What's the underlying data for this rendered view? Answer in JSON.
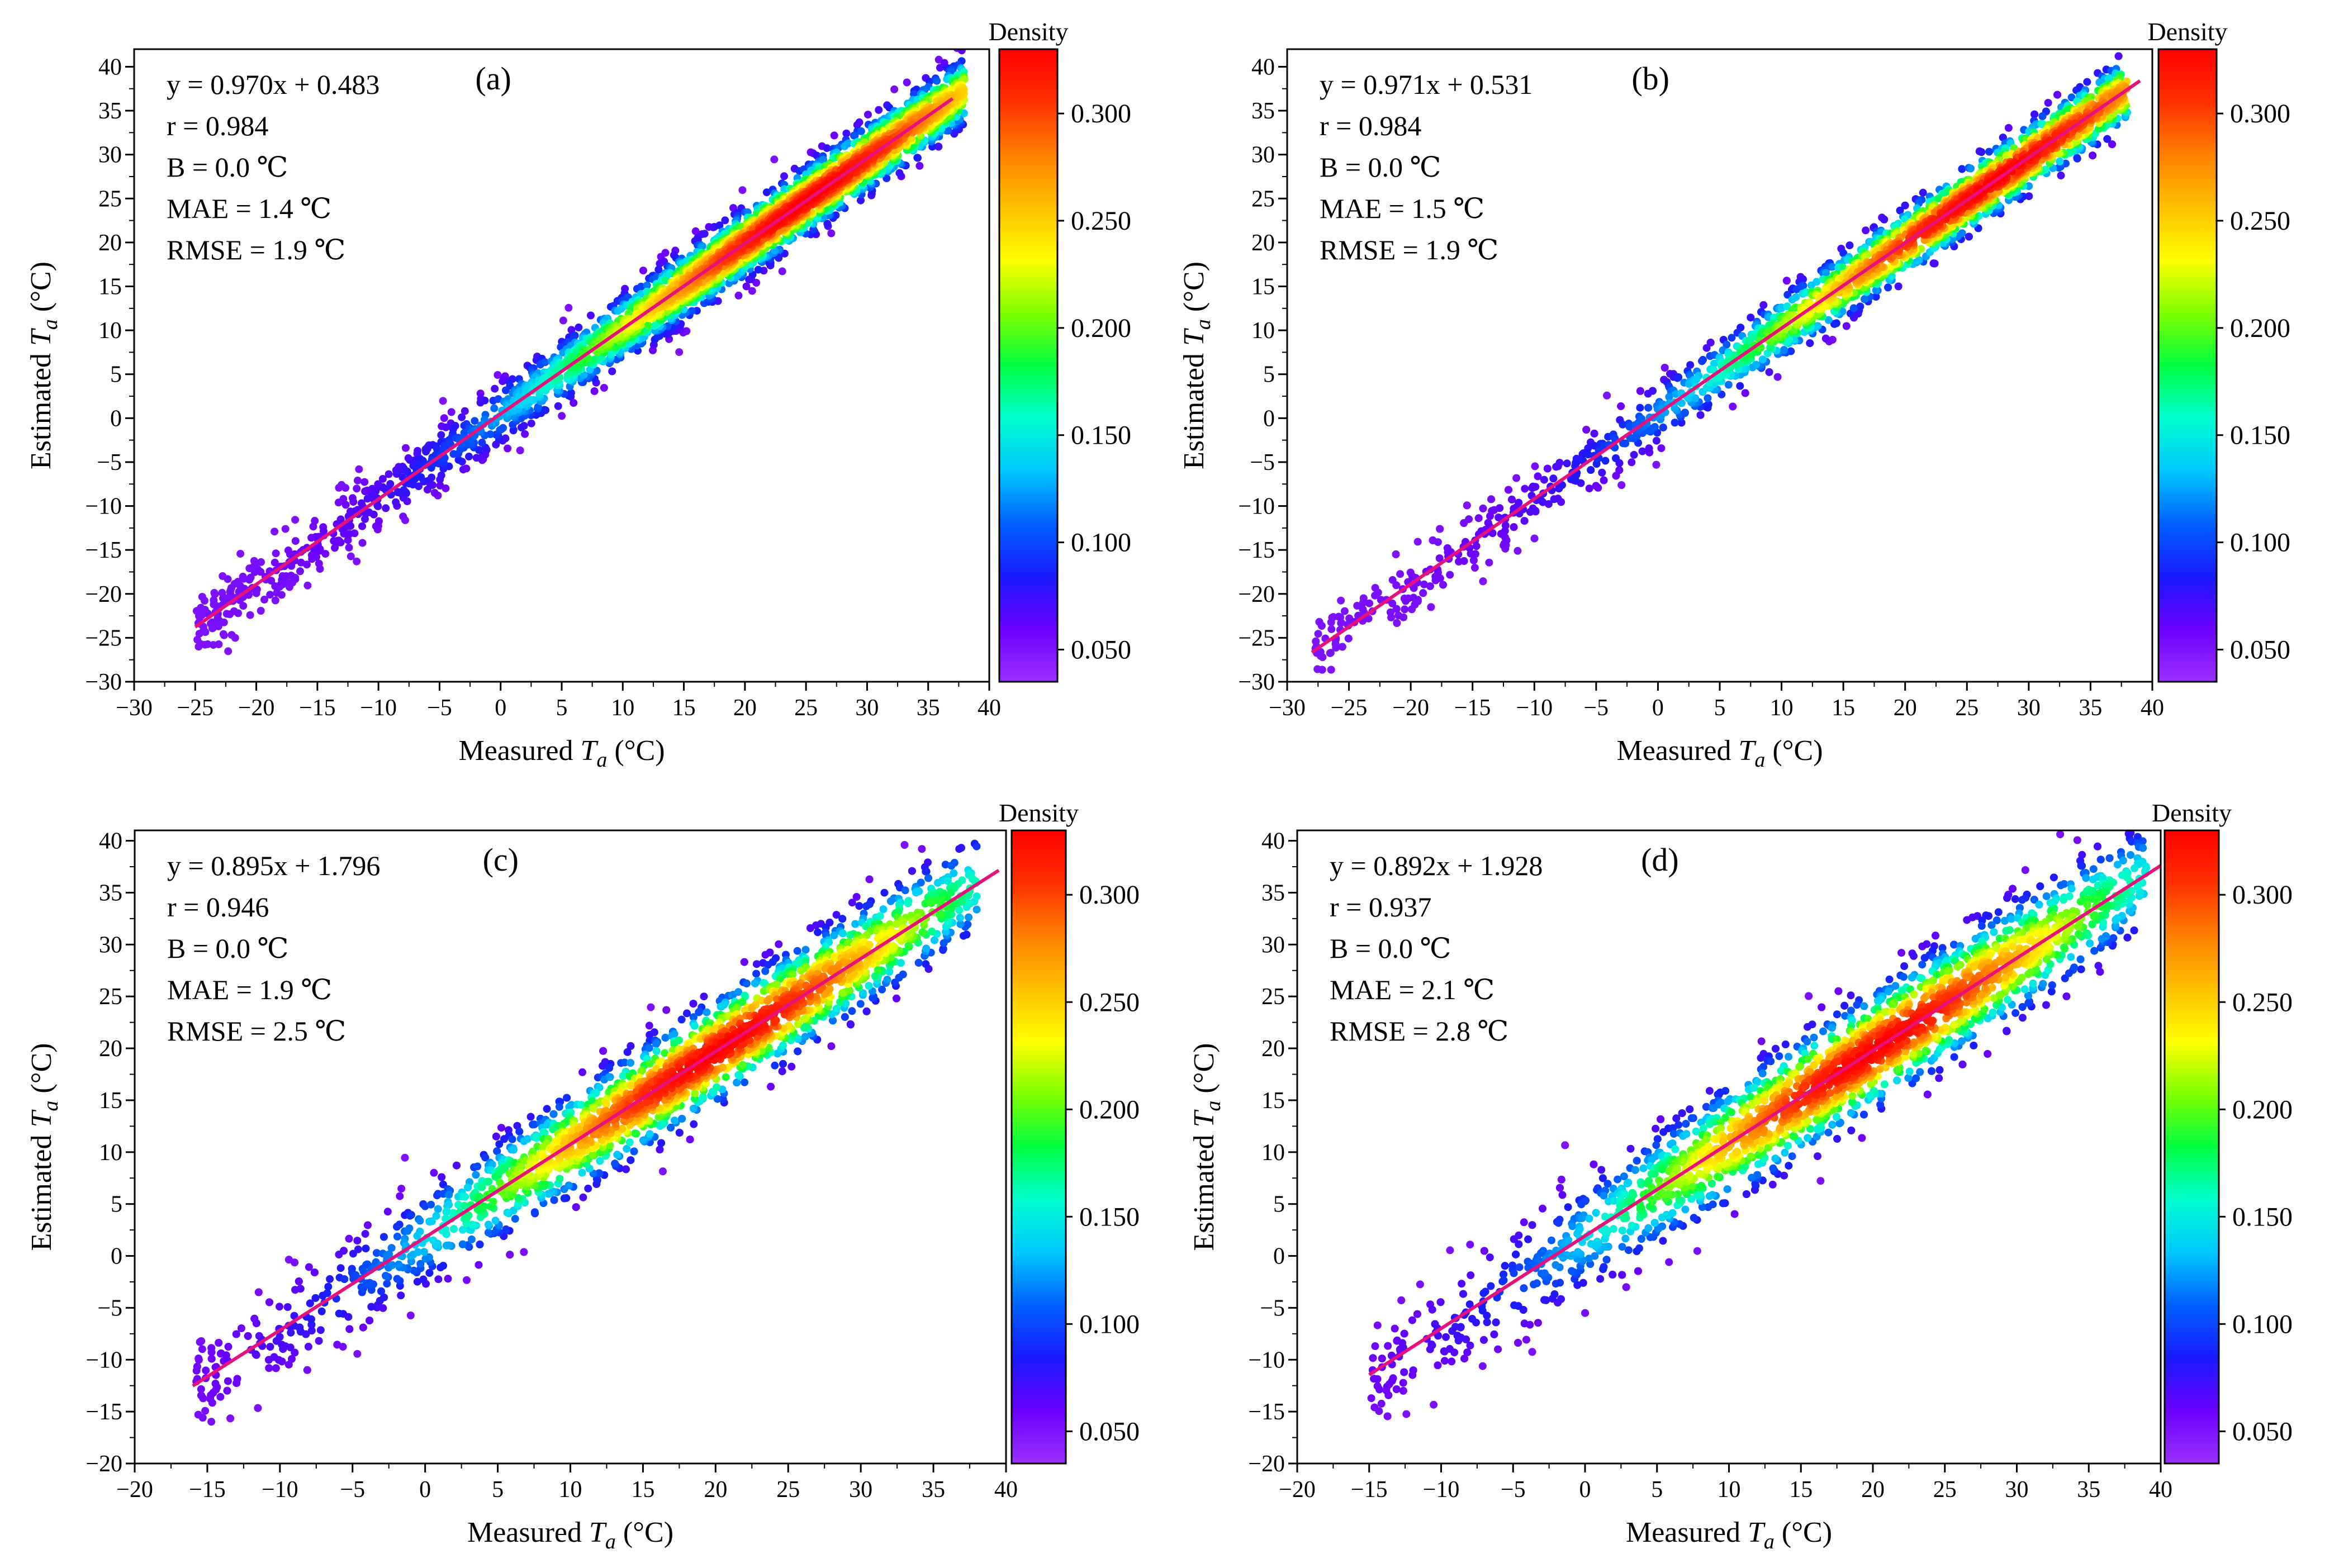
{
  "colorbar": {
    "title": "Density",
    "ticks": [
      0.05,
      0.1,
      0.15,
      0.2,
      0.25,
      0.3
    ],
    "tick_labels": [
      "0.050",
      "0.100",
      "0.150",
      "0.200",
      "0.250",
      "0.300"
    ],
    "range": [
      0.035,
      0.33
    ],
    "colors": [
      "#9b30ff",
      "#6a00ff",
      "#1a1aff",
      "#0060ff",
      "#00c8ff",
      "#00ffd0",
      "#00ff40",
      "#80ff00",
      "#ffff00",
      "#ffc000",
      "#ff8000",
      "#ff3000",
      "#ff0000"
    ]
  },
  "line_color": "#e8107a",
  "chart_data": [
    {
      "type": "scatter",
      "panel_tag": "(a)",
      "xlabel": "Measured T_a (°C)",
      "ylabel": "Estimated T_a (°C)",
      "xlim": [
        -30,
        40
      ],
      "ylim": [
        -30,
        42
      ],
      "xticks": [
        -30,
        -25,
        -20,
        -15,
        -10,
        -5,
        0,
        5,
        10,
        15,
        20,
        25,
        30,
        35,
        40
      ],
      "yticks": [
        -30,
        -25,
        -20,
        -15,
        -10,
        -5,
        0,
        5,
        10,
        15,
        20,
        25,
        30,
        35,
        40
      ],
      "stats": [
        "y = 0.970x + 0.483",
        "r = 0.984",
        "B = 0.0 ℃",
        "MAE = 1.4 ℃",
        "RMSE = 1.9 ℃"
      ],
      "fit": {
        "slope": 0.97,
        "intercept": 0.483,
        "x_range": [
          -25,
          37
        ]
      },
      "cloud": {
        "x_range": [
          -25,
          38
        ],
        "spread": 1.9,
        "peak_x": 25
      }
    },
    {
      "type": "scatter",
      "panel_tag": "(b)",
      "xlabel": "Measured T_a (°C)",
      "ylabel": "Estimated T_a (°C)",
      "xlim": [
        -30,
        40
      ],
      "ylim": [
        -30,
        42
      ],
      "xticks": [
        -30,
        -25,
        -20,
        -15,
        -10,
        -5,
        0,
        5,
        10,
        15,
        20,
        25,
        30,
        35,
        40
      ],
      "yticks": [
        -30,
        -25,
        -20,
        -15,
        -10,
        -5,
        0,
        5,
        10,
        15,
        20,
        25,
        30,
        35,
        40
      ],
      "stats": [
        "y = 0.971x + 0.531",
        "r = 0.984",
        "B = 0.0 ℃",
        "MAE = 1.5 ℃",
        "RMSE = 1.9 ℃"
      ],
      "fit": {
        "slope": 0.971,
        "intercept": 0.531,
        "x_range": [
          -28,
          39
        ]
      },
      "cloud": {
        "x_range": [
          -28,
          38
        ],
        "spread": 1.9,
        "peak_x": 27
      }
    },
    {
      "type": "scatter",
      "panel_tag": "(c)",
      "xlabel": "Measured T_a (°C)",
      "ylabel": "Estimated T_a (°C)",
      "xlim": [
        -20,
        40
      ],
      "ylim": [
        -20,
        41
      ],
      "xticks": [
        -20,
        -15,
        -10,
        -5,
        0,
        5,
        10,
        15,
        20,
        25,
        30,
        35,
        40
      ],
      "yticks": [
        -20,
        -15,
        -10,
        -5,
        0,
        5,
        10,
        15,
        20,
        25,
        30,
        35,
        40
      ],
      "stats": [
        "y = 0.895x + 1.796",
        "r = 0.946",
        "B = 0.0 ℃",
        "MAE = 1.9 ℃",
        "RMSE = 2.5 ℃"
      ],
      "fit": {
        "slope": 0.895,
        "intercept": 1.796,
        "x_range": [
          -16,
          39.5
        ]
      },
      "cloud": {
        "x_range": [
          -16,
          38
        ],
        "spread": 2.5,
        "peak_x": 20
      }
    },
    {
      "type": "scatter",
      "panel_tag": "(d)",
      "xlabel": "Measured T_a (°C)",
      "ylabel": "Estimated T_a (°C)",
      "xlim": [
        -20,
        40
      ],
      "ylim": [
        -20,
        41
      ],
      "xticks": [
        -20,
        -15,
        -10,
        -5,
        0,
        5,
        10,
        15,
        20,
        25,
        30,
        35,
        40
      ],
      "yticks": [
        -20,
        -15,
        -10,
        -5,
        0,
        5,
        10,
        15,
        20,
        25,
        30,
        35,
        40
      ],
      "stats": [
        "y = 0.892x + 1.928",
        "r = 0.937",
        "B = 0.0 ℃",
        "MAE = 2.1 ℃",
        "RMSE = 2.8 ℃"
      ],
      "fit": {
        "slope": 0.892,
        "intercept": 1.928,
        "x_range": [
          -15,
          40
        ]
      },
      "cloud": {
        "x_range": [
          -15,
          39
        ],
        "spread": 2.8,
        "peak_x": 20
      }
    }
  ]
}
